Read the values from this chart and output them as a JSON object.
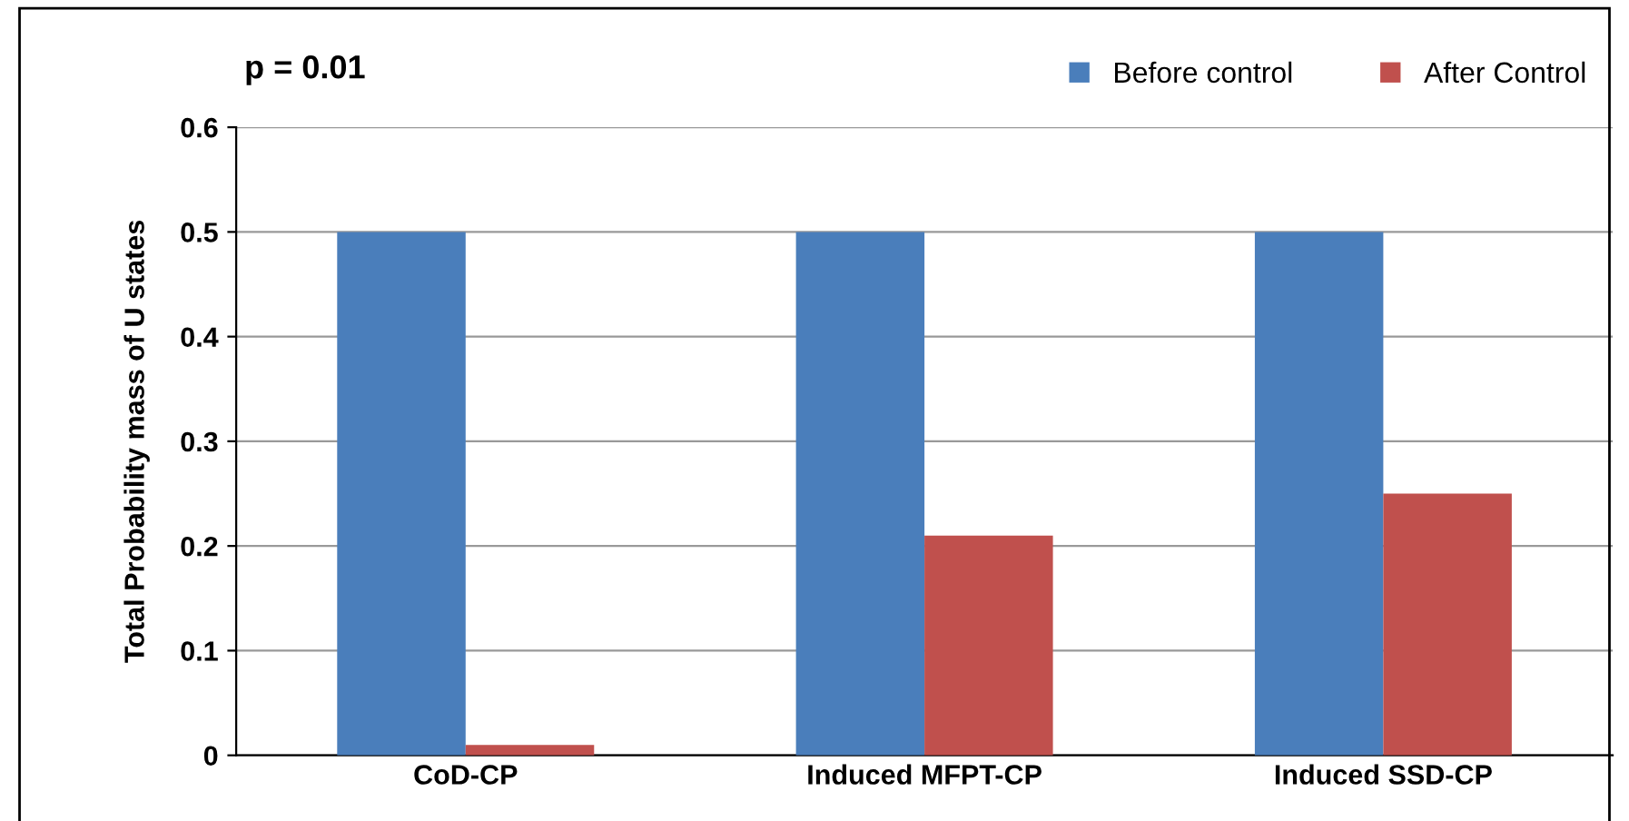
{
  "chart_data": {
    "type": "bar",
    "ylabel": "Total Probability mass of U states",
    "annotations": [
      "p = 0.01"
    ],
    "categories": [
      "CoD-CP",
      "Induced MFPT-CP",
      "Induced SSD-CP"
    ],
    "series": [
      {
        "name": "Before control",
        "color": "#4a7ebb",
        "values": [
          0.5,
          0.5,
          0.5
        ]
      },
      {
        "name": "After Control",
        "color": "#c0504d",
        "values": [
          0.01,
          0.21,
          0.25
        ]
      }
    ],
    "ylim": [
      0,
      0.6
    ],
    "yticks": [
      {
        "value": 0,
        "label": "0"
      },
      0.1,
      0.2,
      0.3,
      0.4,
      0.5,
      0.6
    ],
    "grid": "y",
    "legend": "top right"
  }
}
